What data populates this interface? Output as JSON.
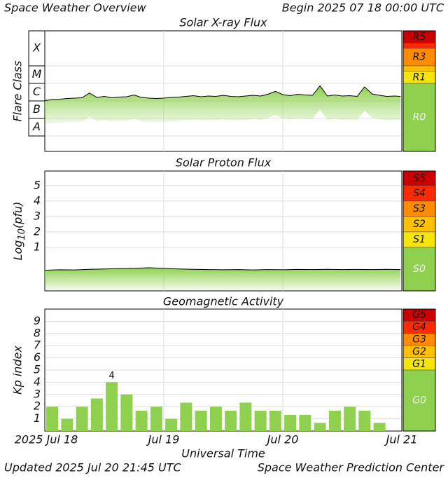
{
  "header": {
    "title": "Space Weather Overview",
    "begin": "Begin 2025 07 18 00:00 UTC"
  },
  "footer": {
    "updated": "Updated 2025 Jul 20 21:45 UTC",
    "center": "Space Weather Prediction Center"
  },
  "chart_data": [
    {
      "type": "area",
      "title": "Solar X-ray Flux",
      "y_label": "Flare Class",
      "classes": [
        {
          "label": "X",
          "range": [
            -4,
            -2
          ]
        },
        {
          "label": "M",
          "range": [
            -5,
            -4
          ]
        },
        {
          "label": "C",
          "range": [
            -6,
            -5
          ]
        },
        {
          "label": "B",
          "range": [
            -7,
            -6
          ]
        },
        {
          "label": "A",
          "range": [
            -8,
            -7
          ]
        }
      ],
      "scale": [
        {
          "label": "R5",
          "color": "#cc0000",
          "range": [
            -2.7,
            -2
          ]
        },
        {
          "label": null,
          "color": "#ff2a00",
          "range": [
            -3,
            -2.7
          ]
        },
        {
          "label": "R3",
          "color": "#ff8c00",
          "range": [
            -4,
            -3
          ]
        },
        {
          "label": null,
          "color": "#ffc000",
          "range": [
            -4.3,
            -4
          ]
        },
        {
          "label": "R1",
          "color": "#f5e50a",
          "range": [
            -5,
            -4.3
          ]
        },
        {
          "label": "R0",
          "color": "#8fd14f",
          "range": [
            -8.88,
            -5
          ]
        }
      ],
      "xlim": [
        0,
        72
      ],
      "ylim": [
        -8.88,
        -2
      ],
      "line_color": "#000000",
      "fill_color": "#8fd14f",
      "grid": true,
      "x": [
        0,
        1.5,
        3,
        4.5,
        6,
        7.5,
        9,
        10.5,
        12,
        13.5,
        15,
        16.5,
        18,
        19.5,
        21,
        22.5,
        24,
        25.5,
        27,
        28.5,
        30,
        31.5,
        33,
        34.5,
        36,
        37.5,
        39,
        40.5,
        42,
        43.5,
        45,
        46.5,
        48,
        49.5,
        51,
        52.5,
        54,
        55.5,
        57,
        58.5,
        60,
        61.5,
        63,
        64.5,
        66,
        67.5,
        69,
        70.5,
        71.75
      ],
      "values": [
        -5.98,
        -5.92,
        -5.9,
        -5.86,
        -5.84,
        -5.82,
        -5.55,
        -5.8,
        -5.74,
        -5.82,
        -5.78,
        -5.76,
        -5.66,
        -5.8,
        -5.84,
        -5.86,
        -5.84,
        -5.8,
        -5.78,
        -5.74,
        -5.7,
        -5.76,
        -5.72,
        -5.74,
        -5.68,
        -5.74,
        -5.76,
        -5.72,
        -5.68,
        -5.72,
        -5.62,
        -5.45,
        -5.64,
        -5.7,
        -5.62,
        -5.66,
        -5.68,
        -5.14,
        -5.72,
        -5.66,
        -5.72,
        -5.7,
        -5.74,
        -5.2,
        -5.6,
        -5.68,
        -5.74,
        -5.72,
        -5.74
      ]
    },
    {
      "type": "area",
      "title": "Solar Proton Flux",
      "y_label": {
        "base": "Log",
        "sub": "10",
        "unit": "(pfu)"
      },
      "scale": [
        {
          "label": "S5",
          "color": "#cc0000",
          "range": [
            5,
            5.95
          ]
        },
        {
          "label": "S4",
          "color": "#ff2a00",
          "range": [
            4,
            5
          ]
        },
        {
          "label": "S3",
          "color": "#ff8c00",
          "range": [
            3,
            4
          ]
        },
        {
          "label": "S2",
          "color": "#ffc000",
          "range": [
            2,
            3
          ]
        },
        {
          "label": "S1",
          "color": "#f5e50a",
          "range": [
            1,
            2
          ]
        },
        {
          "label": "S0",
          "color": "#8fd14f",
          "range": [
            -1.82,
            1
          ]
        }
      ],
      "xlim": [
        0,
        72
      ],
      "ylim": [
        -1.82,
        5.95
      ],
      "yticks": [
        1,
        2,
        3,
        4,
        5
      ],
      "line_color": "#000000",
      "fill_color": "#8fd14f",
      "grid": true,
      "x": [
        0,
        3,
        6,
        9,
        12,
        15,
        18,
        21,
        24,
        27,
        30,
        33,
        36,
        39,
        42,
        45,
        48,
        51,
        54,
        57,
        60,
        63,
        66,
        69,
        71.75
      ],
      "values": [
        -0.48,
        -0.45,
        -0.46,
        -0.42,
        -0.4,
        -0.38,
        -0.36,
        -0.32,
        -0.36,
        -0.4,
        -0.42,
        -0.44,
        -0.45,
        -0.44,
        -0.46,
        -0.44,
        -0.45,
        -0.43,
        -0.44,
        -0.42,
        -0.44,
        -0.43,
        -0.44,
        -0.42,
        -0.44
      ]
    },
    {
      "type": "bar",
      "title": "Geomagnetic Activity",
      "y_label": "Kp index",
      "x_label": "Universal Time",
      "scale": [
        {
          "label": "G5",
          "color": "#cc0000",
          "range": [
            9,
            10
          ]
        },
        {
          "label": "G4",
          "color": "#ff2a00",
          "range": [
            8,
            9
          ]
        },
        {
          "label": "G3",
          "color": "#ff8c00",
          "range": [
            7,
            8
          ]
        },
        {
          "label": "G2",
          "color": "#ffc000",
          "range": [
            6,
            7
          ]
        },
        {
          "label": "G1",
          "color": "#f5e50a",
          "range": [
            5,
            6
          ]
        },
        {
          "label": "G0",
          "color": "#8fd14f",
          "range": [
            0,
            5
          ]
        }
      ],
      "xlim": [
        0,
        72
      ],
      "ylim": [
        0,
        10
      ],
      "yticks": [
        1,
        2,
        3,
        4,
        5,
        6,
        7,
        8,
        9
      ],
      "xticks": [
        {
          "value": 0,
          "label": "2025 Jul 18"
        },
        {
          "value": 24,
          "label": "Jul 19"
        },
        {
          "value": 48,
          "label": "Jul 20"
        },
        {
          "value": 72,
          "label": "Jul 21"
        }
      ],
      "color": "#8fd14f",
      "grid": true,
      "label_max": true,
      "x": [
        0,
        3,
        6,
        9,
        12,
        15,
        18,
        21,
        24,
        27,
        30,
        33,
        36,
        39,
        42,
        45,
        48,
        51,
        54,
        57,
        60,
        63,
        66
      ],
      "values": [
        2,
        1,
        2,
        2.67,
        4,
        3,
        1.67,
        2,
        1,
        2.33,
        1.67,
        2,
        1.67,
        2.33,
        1.67,
        1.67,
        1.33,
        1.33,
        0.67,
        1.67,
        2,
        1.67,
        0.67
      ]
    }
  ]
}
